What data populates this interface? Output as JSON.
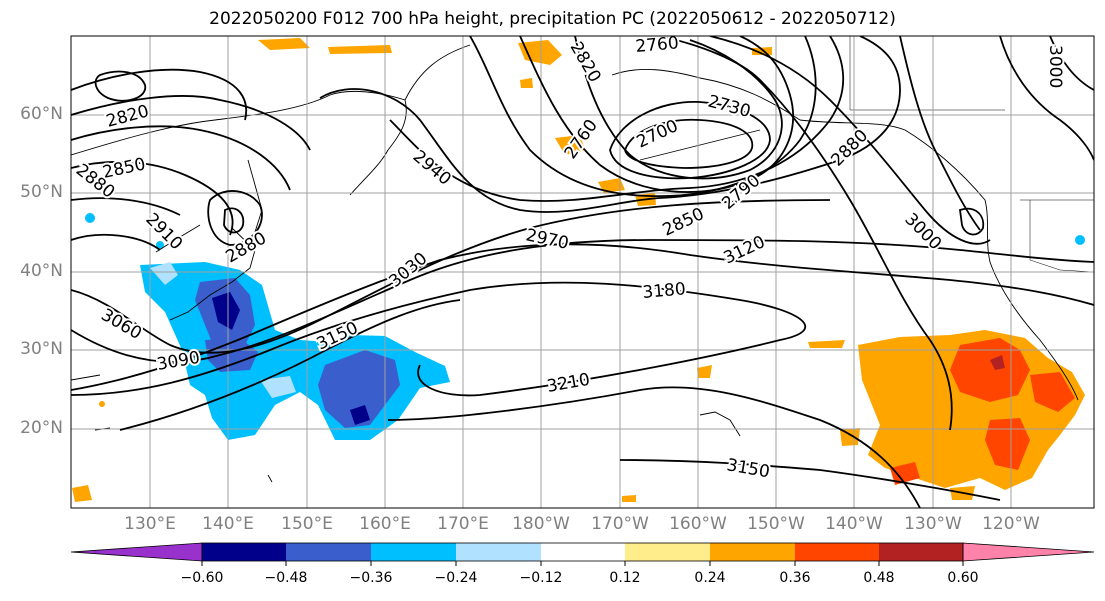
{
  "title": "2022050200 F012 700 hPa height, precipitation PC (2022050612 - 2022050712)",
  "latitude_labels": [
    "60°N",
    "50°N",
    "40°N",
    "30°N",
    "20°N"
  ],
  "longitude_labels": [
    "130°E",
    "140°E",
    "150°E",
    "160°E",
    "170°E",
    "180°W",
    "170°W",
    "160°W",
    "150°W",
    "140°W",
    "130°W",
    "120°W"
  ],
  "contour_labels": [
    "2820",
    "2850",
    "2880",
    "2910",
    "2880",
    "3060",
    "3090",
    "3150",
    "3030",
    "2940",
    "2970",
    "3180",
    "3210",
    "3150",
    "2760",
    "2760",
    "2820",
    "2730",
    "2700",
    "2790",
    "2850",
    "2880",
    "3120",
    "3000",
    "3000"
  ],
  "colorbar": {
    "ticks": [
      "−0.60",
      "−0.48",
      "−0.36",
      "−0.24",
      "−0.12",
      "0.12",
      "0.24",
      "0.36",
      "0.48",
      "0.60"
    ],
    "colors": [
      "#9932cc",
      "#00008b",
      "#3a5fcd",
      "#00bfff",
      "#b0e2ff",
      "#ffffff",
      "#ffec8b",
      "#ffa500",
      "#ff4500",
      "#b22222",
      "#ff82ab"
    ]
  }
}
